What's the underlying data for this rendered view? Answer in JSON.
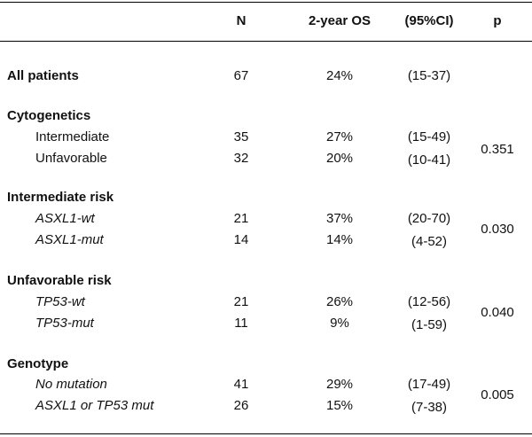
{
  "headers": {
    "n": "N",
    "os": "2-year OS",
    "ci": "(95%CI)",
    "p": "p"
  },
  "all_patients": {
    "label": "All patients",
    "n": "67",
    "os": "24%",
    "ci": "(15-37)"
  },
  "groups": [
    {
      "title": "Cytogenetics",
      "p": "0.351",
      "rows": [
        {
          "label": "Intermediate",
          "n": "35",
          "os": "27%",
          "ci": "(15-49)"
        },
        {
          "label": "Unfavorable",
          "n": "32",
          "os": "20%",
          "ci": "(10-41)"
        }
      ]
    },
    {
      "title": "Intermediate risk",
      "p": "0.030",
      "rows": [
        {
          "label": "ASXL1-wt",
          "n": "21",
          "os": "37%",
          "ci": "(20-70)"
        },
        {
          "label": "ASXL1-mut",
          "n": "14",
          "os": "14%",
          "ci": "(4-52)"
        }
      ]
    },
    {
      "title": "Unfavorable risk",
      "p": "0.040",
      "rows": [
        {
          "label": "TP53-wt",
          "n": "21",
          "os": "26%",
          "ci": "(12-56)"
        },
        {
          "label": "TP53-mut",
          "n": "11",
          "os": "9%",
          "ci": "(1-59)"
        }
      ]
    },
    {
      "title": "Genotype",
      "p": "0.005",
      "rows": [
        {
          "label": "No mutation",
          "n": "41",
          "os": "29%",
          "ci": "(17-49)"
        },
        {
          "label": "ASXL1 or TP53 mut",
          "n": "26",
          "os": "15%",
          "ci": "(7-38)"
        }
      ]
    }
  ]
}
